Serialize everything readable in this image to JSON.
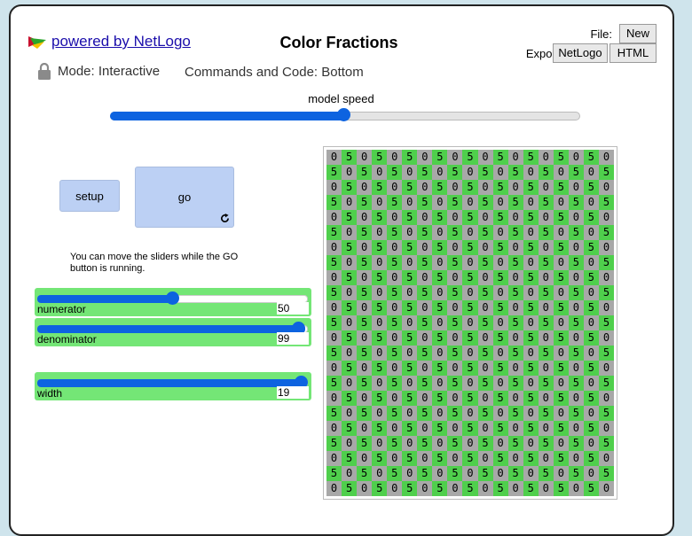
{
  "header": {
    "powered_by": "powered by NetLogo",
    "title": "Color Fractions",
    "file_label": "File:",
    "file_new": "New",
    "export_label": "Export:",
    "export_netlogo": "NetLogo",
    "export_html": "HTML"
  },
  "mode": {
    "label": "Mode: Interactive",
    "commands": "Commands and Code: Bottom"
  },
  "speed": {
    "label": "model speed",
    "value_fraction": 0.5
  },
  "buttons": {
    "setup": "setup",
    "go": "go",
    "go_icon": "forever-icon"
  },
  "note": "You can move the sliders while the GO button is running.",
  "sliders": {
    "numerator": {
      "label": "numerator",
      "value": "50",
      "fraction": 0.5
    },
    "denominator": {
      "label": "denominator",
      "value": "99",
      "fraction": 1.0
    },
    "width": {
      "label": "width",
      "value": "19",
      "fraction": 1.0
    }
  },
  "view": {
    "columns": 19,
    "rows": 23,
    "green_value": "5",
    "gray_value": "0",
    "green_color": "#4fcf4c",
    "gray_color": "#a8a8a8"
  }
}
